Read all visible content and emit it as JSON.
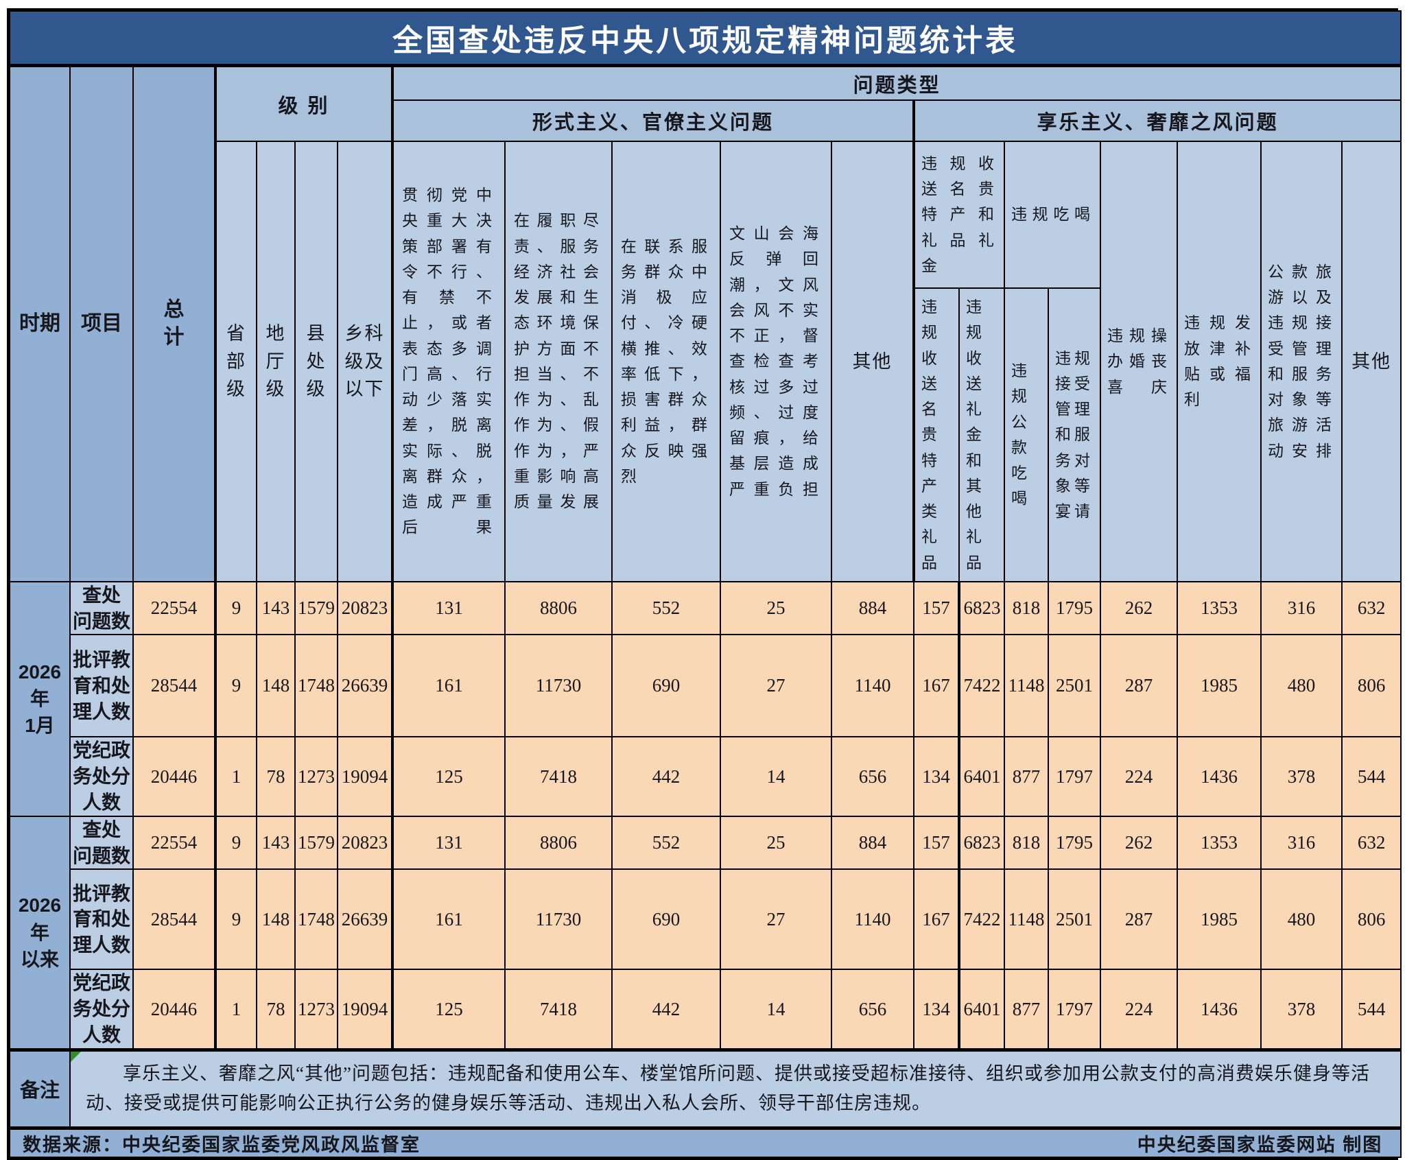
{
  "title": "全国查处违反中央八项规定精神问题统计表",
  "header": {
    "period": "时期",
    "item": "项目",
    "total": "总\n计",
    "level": "级 别",
    "problem_type": "问题类型",
    "formalism_group": "形式主义、官僚主义问题",
    "hedonism_group": "享乐主义、奢靡之风问题",
    "levels": [
      "省\n部\n级",
      "地\n厅\n级",
      "县\n处\n级",
      "乡科\n级及\n以下"
    ],
    "formalism_cols": [
      "贯彻党中央重大决策部署有令不行、有禁不止，或者表态多调门高、行动少落实差，脱离实际、脱离群众，造成严重后果",
      "在履职尽责、服务经济社会发展和生态环境保护方面不担当、不作为、乱作为、假作为，严重影响高质量发展",
      "在联系服务群众中消极应付、冷硬横推、效率低下，损害群众利益，群众反映强烈",
      "文山会海反弹回潮，文风会风不实不正，督查检查考核过多过频、过度留痕，给基层造成严重负担",
      "其他"
    ],
    "gift_group": "违规收送名贵特产和礼品礼金",
    "dining_group": "违规吃喝",
    "gift_cols": [
      "违规收送名贵特产类礼品",
      "违规收送礼金和其他礼品"
    ],
    "dining_cols": [
      "违规公款吃喝",
      "违规接受管理和服务对象等宴请"
    ],
    "hedonism_cols": [
      "违规操办婚丧喜庆",
      "违规发放津补贴或福利",
      "公款旅游以及违规接受管理和服务对象等旅游活动安排",
      "其他"
    ]
  },
  "rows": [
    {
      "period": "2026年\n1月",
      "label": "查处\n问题数",
      "values": [
        22554,
        9,
        143,
        1579,
        20823,
        131,
        8806,
        552,
        25,
        884,
        157,
        6823,
        818,
        1795,
        262,
        1353,
        316,
        632
      ]
    },
    {
      "period": "2026年\n1月",
      "label": "批评教\n育和处\n理人数",
      "values": [
        28544,
        9,
        148,
        1748,
        26639,
        161,
        11730,
        690,
        27,
        1140,
        167,
        7422,
        1148,
        2501,
        287,
        1985,
        480,
        806
      ]
    },
    {
      "period": "2026年\n1月",
      "label": "党纪政\n务处分\n人数",
      "values": [
        20446,
        1,
        78,
        1273,
        19094,
        125,
        7418,
        442,
        14,
        656,
        134,
        6401,
        877,
        1797,
        224,
        1436,
        378,
        544
      ]
    },
    {
      "period": "2026年\n以来",
      "label": "查处\n问题数",
      "values": [
        22554,
        9,
        143,
        1579,
        20823,
        131,
        8806,
        552,
        25,
        884,
        157,
        6823,
        818,
        1795,
        262,
        1353,
        316,
        632
      ]
    },
    {
      "period": "2026年\n以来",
      "label": "批评教\n育和处\n理人数",
      "values": [
        28544,
        9,
        148,
        1748,
        26639,
        161,
        11730,
        690,
        27,
        1140,
        167,
        7422,
        1148,
        2501,
        287,
        1985,
        480,
        806
      ]
    },
    {
      "period": "2026年\n以来",
      "label": "党纪政\n务处分\n人数",
      "values": [
        20446,
        1,
        78,
        1273,
        19094,
        125,
        7418,
        442,
        14,
        656,
        134,
        6401,
        877,
        1797,
        224,
        1436,
        378,
        544
      ]
    }
  ],
  "remark": {
    "label": "备注",
    "text": "享乐主义、奢靡之风“其他”问题包括：违规配备和使用公车、楼堂馆所问题、提供或接受超标准接待、组织或参加用公款支付的高消费娱乐健身等活动、接受或提供可能影响公正执行公务的健身娱乐等活动、违规出入私人会所、领导干部住房违规。"
  },
  "footer": {
    "left": "数据来源：中央纪委国家监委党风政风监督室",
    "right": "中央纪委国家监委网站 制图"
  },
  "colors": {
    "title_bg": "#31588e",
    "medium_blue": "#92b0d4",
    "group_blue": "#aac1dc",
    "light_blue": "#bccee4",
    "data_bg": "#fbd8b5",
    "marker_green": "#2f8f2f"
  }
}
